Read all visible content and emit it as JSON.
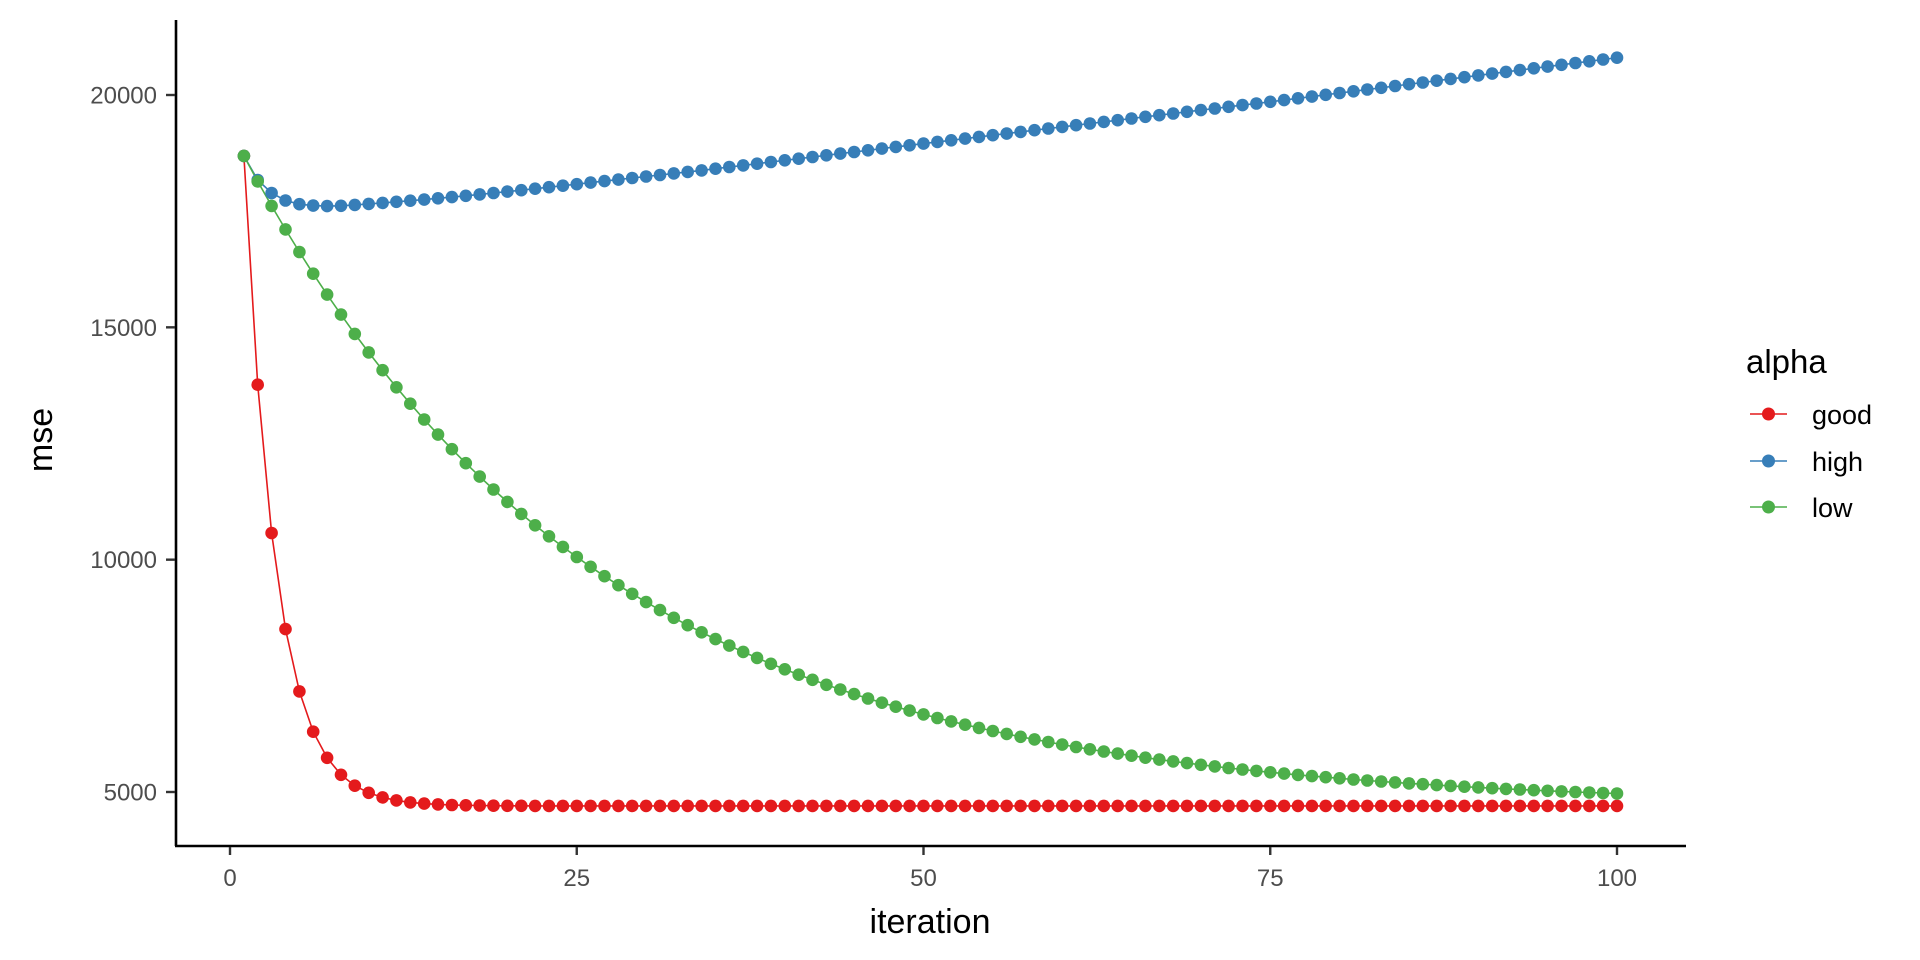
{
  "chart_data": {
    "type": "line",
    "title": "",
    "xlabel": "iteration",
    "ylabel": "mse",
    "xlim": [
      -3.3,
      105
    ],
    "ylim": [
      4000,
      21700
    ],
    "x_ticks": [
      0,
      25,
      50,
      75,
      100
    ],
    "y_ticks": [
      5000,
      10000,
      15000,
      20000
    ],
    "grid": false,
    "legend": {
      "title": "alpha",
      "position": "right"
    },
    "markers": true,
    "x": [
      1,
      2,
      3,
      4,
      5,
      6,
      7,
      8,
      9,
      10,
      11,
      12,
      13,
      14,
      15,
      16,
      17,
      18,
      19,
      20,
      21,
      22,
      23,
      24,
      25,
      26,
      27,
      28,
      29,
      30,
      31,
      32,
      33,
      34,
      35,
      36,
      37,
      38,
      39,
      40,
      41,
      42,
      43,
      44,
      45,
      46,
      47,
      48,
      49,
      50,
      51,
      52,
      53,
      54,
      55,
      56,
      57,
      58,
      59,
      60,
      61,
      62,
      63,
      64,
      65,
      66,
      67,
      68,
      69,
      70,
      71,
      72,
      73,
      74,
      75,
      76,
      77,
      78,
      79,
      80,
      81,
      82,
      83,
      84,
      85,
      86,
      87,
      88,
      89,
      90,
      91,
      92,
      93,
      94,
      95,
      96,
      97,
      98,
      99,
      100
    ],
    "series": [
      {
        "name": "good",
        "color": "#E41A1C",
        "values": [
          18690,
          13766,
          10574,
          8506,
          7166,
          6298,
          5736,
          5371,
          5135,
          4982,
          4883,
          4819,
          4777,
          4750,
          4733,
          4721,
          4714,
          4709,
          4706,
          4704,
          4702,
          4701,
          4701,
          4701,
          4701,
          4700,
          4700,
          4700,
          4700,
          4700,
          4700,
          4700,
          4700,
          4700,
          4700,
          4700,
          4700,
          4700,
          4700,
          4700,
          4700,
          4700,
          4700,
          4700,
          4700,
          4700,
          4700,
          4700,
          4700,
          4700,
          4700,
          4700,
          4700,
          4700,
          4700,
          4700,
          4700,
          4700,
          4700,
          4700,
          4700,
          4700,
          4700,
          4700,
          4700,
          4700,
          4700,
          4700,
          4700,
          4700,
          4700,
          4700,
          4700,
          4700,
          4700,
          4700,
          4700,
          4700,
          4700,
          4700,
          4700,
          4700,
          4700,
          4700,
          4700,
          4700,
          4700,
          4700,
          4700,
          4700,
          4700,
          4700,
          4700,
          4700,
          4700,
          4700,
          4700,
          4700,
          4700,
          4700
        ]
      },
      {
        "name": "high",
        "color": "#377EB8",
        "values": [
          18690,
          18170,
          17890,
          17730,
          17650,
          17620,
          17610,
          17615,
          17635,
          17656,
          17678,
          17701,
          17725,
          17750,
          17776,
          17803,
          17831,
          17860,
          17890,
          17921,
          17952,
          17984,
          18016,
          18048,
          18081,
          18114,
          18147,
          18180,
          18213,
          18246,
          18279,
          18312,
          18345,
          18378,
          18414,
          18450,
          18486,
          18522,
          18558,
          18594,
          18630,
          18666,
          18702,
          18738,
          18774,
          18810,
          18846,
          18882,
          18918,
          18954,
          18990,
          19026,
          19062,
          19098,
          19134,
          19170,
          19206,
          19242,
          19278,
          19314,
          19350,
          19386,
          19422,
          19458,
          19494,
          19530,
          19566,
          19602,
          19638,
          19674,
          19710,
          19746,
          19782,
          19818,
          19854,
          19890,
          19928,
          19966,
          20004,
          20042,
          20080,
          20118,
          20156,
          20194,
          20232,
          20270,
          20308,
          20346,
          20384,
          20422,
          20460,
          20498,
          20536,
          20574,
          20612,
          20650,
          20688,
          20726,
          20764,
          20802
        ]
      },
      {
        "name": "low",
        "color": "#4DAF4A",
        "values": [
          18690,
          18141,
          17614,
          17108,
          16621,
          16154,
          15705,
          15273,
          14859,
          14460,
          14078,
          13710,
          13357,
          13017,
          12691,
          12378,
          12077,
          11788,
          11510,
          11243,
          10986,
          10740,
          10503,
          10275,
          10057,
          9847,
          9645,
          9451,
          9265,
          9086,
          8914,
          8748,
          8590,
          8437,
          8291,
          8150,
          8015,
          7885,
          7760,
          7640,
          7525,
          7414,
          7307,
          7205,
          7107,
          7013,
          6922,
          6835,
          6751,
          6671,
          6593,
          6519,
          6448,
          6379,
          6313,
          6250,
          6189,
          6131,
          6075,
          6021,
          5969,
          5919,
          5872,
          5826,
          5781,
          5739,
          5698,
          5659,
          5622,
          5585,
          5551,
          5517,
          5485,
          5455,
          5425,
          5397,
          5369,
          5343,
          5318,
          5294,
          5270,
          5248,
          5226,
          5206,
          5186,
          5167,
          5149,
          5131,
          5114,
          5098,
          5082,
          5067,
          5053,
          5039,
          5026,
          5013,
          5001,
          4989,
          4978,
          4967
        ]
      }
    ]
  },
  "axes": {
    "x_title": "iteration",
    "y_title": "mse",
    "x_tick_labels": [
      "0",
      "25",
      "50",
      "75",
      "100"
    ],
    "y_tick_labels": [
      "5000",
      "10000",
      "15000",
      "20000"
    ]
  },
  "legend": {
    "title": "alpha",
    "items": [
      {
        "label": "good",
        "color": "#E41A1C"
      },
      {
        "label": "high",
        "color": "#377EB8"
      },
      {
        "label": "low",
        "color": "#4DAF4A"
      }
    ]
  }
}
